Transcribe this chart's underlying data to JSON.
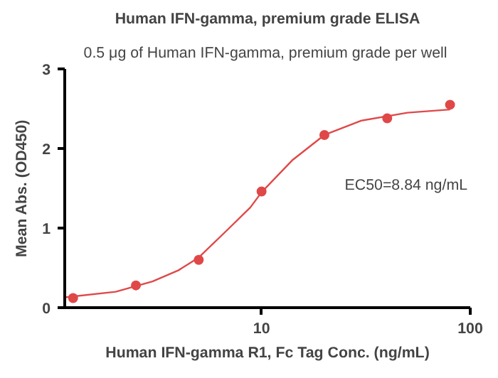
{
  "chart_data": {
    "type": "scatter",
    "title": "Human IFN-gamma, premium grade ELISA",
    "subtitle": "0.5 μg of Human IFN-gamma, premium grade  per well",
    "xlabel": "Human IFN-gamma R1, Fc Tag Conc. (ng/mL)",
    "ylabel": "Mean Abs. (OD450)",
    "x": [
      1.25,
      2.5,
      5,
      10,
      20,
      40,
      80
    ],
    "series": [
      {
        "color": "#e04848",
        "marker": "circle",
        "values": [
          0.12,
          0.28,
          0.6,
          1.46,
          2.17,
          2.38,
          2.55
        ]
      },
      {
        "type": "line",
        "color": "#e04848",
        "x": [
          1.14,
          2,
          3,
          4,
          5,
          7,
          8.84,
          10,
          14,
          20,
          30,
          50,
          80
        ],
        "values": [
          0.13,
          0.2,
          0.33,
          0.47,
          0.63,
          1.0,
          1.26,
          1.45,
          1.85,
          2.17,
          2.35,
          2.45,
          2.49
        ]
      }
    ],
    "annotations": [
      "EC50=8.84 ng/mL"
    ],
    "log": "x",
    "xlim": [
      1.14,
      100
    ],
    "xticks": [
      10,
      100
    ],
    "ylim": [
      0,
      3
    ],
    "yticks": [
      0,
      1,
      2,
      3
    ],
    "grid": false,
    "line_style": "solid"
  }
}
